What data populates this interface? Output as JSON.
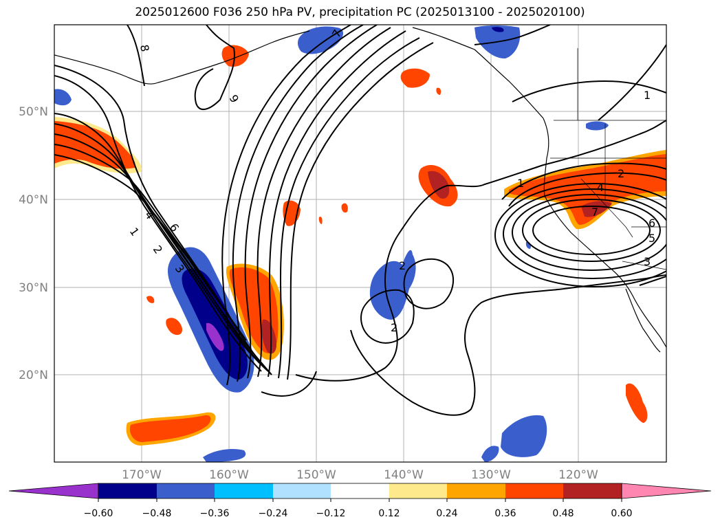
{
  "title": "2025012600 F036 250 hPa PV, precipitation PC (2025013100 - 2025020100)",
  "lat_labels": [
    "50°N",
    "40°N",
    "30°N",
    "20°N"
  ],
  "lon_labels": [
    "170°W",
    "160°W",
    "150°W",
    "140°W",
    "130°W",
    "120°W"
  ],
  "colorbar": {
    "ticks": [
      "−0.60",
      "−0.48",
      "−0.36",
      "−0.24",
      "−0.12",
      "0.12",
      "0.24",
      "0.36",
      "0.48",
      "0.60"
    ],
    "colors": [
      "#9932cc",
      "#00008b",
      "#3a5fcd",
      "#00bfff",
      "#b0e2ff",
      "#ffffff",
      "#fee98c",
      "#ffa500",
      "#ff4500",
      "#b22222",
      "#ff86b0"
    ]
  },
  "contour_labels": [
    {
      "text": "8"
    },
    {
      "text": "9"
    },
    {
      "text": "7"
    },
    {
      "text": "1"
    },
    {
      "text": "2"
    },
    {
      "text": "4"
    },
    {
      "text": "6"
    },
    {
      "text": "3"
    },
    {
      "text": "2"
    },
    {
      "text": "2"
    },
    {
      "text": "1"
    },
    {
      "text": "2"
    },
    {
      "text": "4"
    },
    {
      "text": "7"
    },
    {
      "text": "6"
    },
    {
      "text": "5"
    },
    {
      "text": "3"
    },
    {
      "text": "1"
    }
  ]
}
